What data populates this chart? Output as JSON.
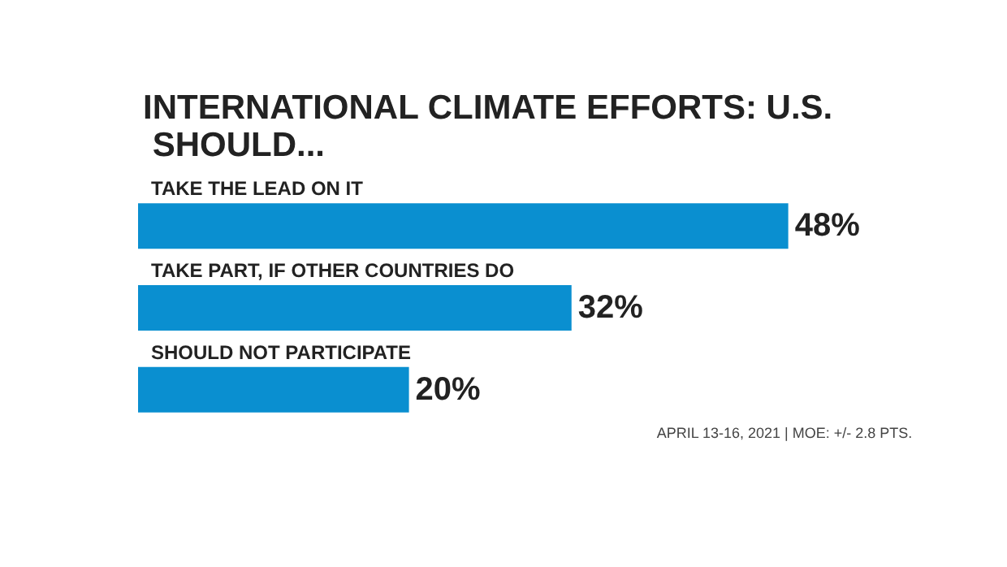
{
  "chart_data": {
    "type": "bar",
    "orientation": "horizontal",
    "title": "INTERNATIONAL CLIMATE EFFORTS: U.S. SHOULD...",
    "categories": [
      "TAKE THE LEAD ON IT",
      "TAKE PART, IF OTHER COUNTRIES DO",
      "SHOULD NOT PARTICIPATE"
    ],
    "values": [
      48,
      32,
      20
    ],
    "color": "#0a8fd0",
    "value_labels": [
      "48%",
      "32%",
      "20%"
    ],
    "annotations": [
      "APRIL 13-16, 2021 | MOE: +/- 2.8 PTS."
    ]
  }
}
